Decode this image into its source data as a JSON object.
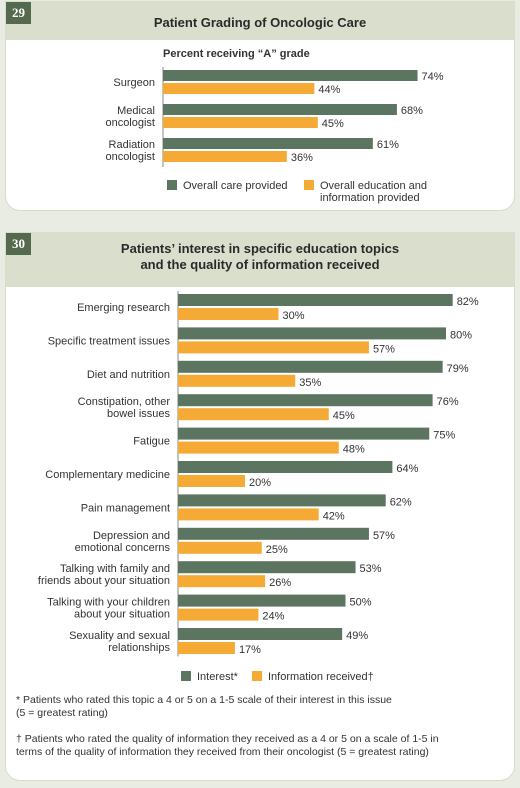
{
  "figure29": {
    "number": "29",
    "title": "Patient Grading of Oncologic Care",
    "subtitle": "Percent receiving “A” grade"
  },
  "figure30": {
    "number": "30",
    "title_line1": "Patients’ interest in specific education topics",
    "title_line2": "and the quality of information received",
    "footnote1_line1": "* Patients who rated this topic a 4 or 5 on a 1-5 scale of their interest in this issue",
    "footnote1_line2": "(5 = greatest rating)",
    "footnote2_line1": "† Patients who rated the quality of information they received as a 4 or 5 on a scale of 1-5 in",
    "footnote2_line2": "terms of the quality of information they received from their oncologist (5 = greatest rating)"
  },
  "colors": {
    "series1": "#5c7560",
    "series2": "#f6aa36",
    "header_bg": "#d9dfcc",
    "number_bg": "#55694e"
  },
  "chart_data": [
    {
      "type": "bar",
      "orientation": "horizontal",
      "title": "Patient Grading of Oncologic Care",
      "subtitle": "Percent receiving “A” grade",
      "categories": [
        [
          "Surgeon"
        ],
        [
          "Medical",
          "oncologist"
        ],
        [
          "Radiation",
          "oncologist"
        ]
      ],
      "series": [
        {
          "name": "Overall care provided",
          "name_lines": [
            "Overall care provided"
          ],
          "color": "#5c7560",
          "values": [
            74,
            68,
            61
          ]
        },
        {
          "name": "Overall education and information provided",
          "name_lines": [
            "Overall education and",
            "information provided"
          ],
          "color": "#f6aa36",
          "values": [
            44,
            45,
            36
          ]
        }
      ],
      "value_suffix": "%",
      "xlim": [
        0,
        100
      ],
      "grid": false,
      "legend": "bottom"
    },
    {
      "type": "bar",
      "orientation": "horizontal",
      "title": "Patients’ interest in specific education topics and the quality of information received",
      "categories": [
        [
          "Emerging research"
        ],
        [
          "Specific treatment issues"
        ],
        [
          "Diet and nutrition"
        ],
        [
          "Constipation, other",
          "bowel issues"
        ],
        [
          "Fatigue"
        ],
        [
          "Complementary medicine"
        ],
        [
          "Pain management"
        ],
        [
          "Depression and",
          "emotional concerns"
        ],
        [
          "Talking with family and",
          "friends about your situation"
        ],
        [
          "Talking with your children",
          "about your situation"
        ],
        [
          "Sexuality and sexual",
          "relationships"
        ]
      ],
      "series": [
        {
          "name": "Interest*",
          "name_lines": [
            "Interest*"
          ],
          "color": "#5c7560",
          "values": [
            82,
            80,
            79,
            76,
            75,
            64,
            62,
            57,
            53,
            50,
            49
          ]
        },
        {
          "name": "Information received†",
          "name_lines": [
            "Information received†"
          ],
          "color": "#f6aa36",
          "values": [
            30,
            57,
            35,
            45,
            48,
            20,
            42,
            25,
            26,
            24,
            17
          ]
        }
      ],
      "value_suffix": "%",
      "xlim": [
        0,
        100
      ],
      "grid": false,
      "legend": "bottom"
    }
  ]
}
